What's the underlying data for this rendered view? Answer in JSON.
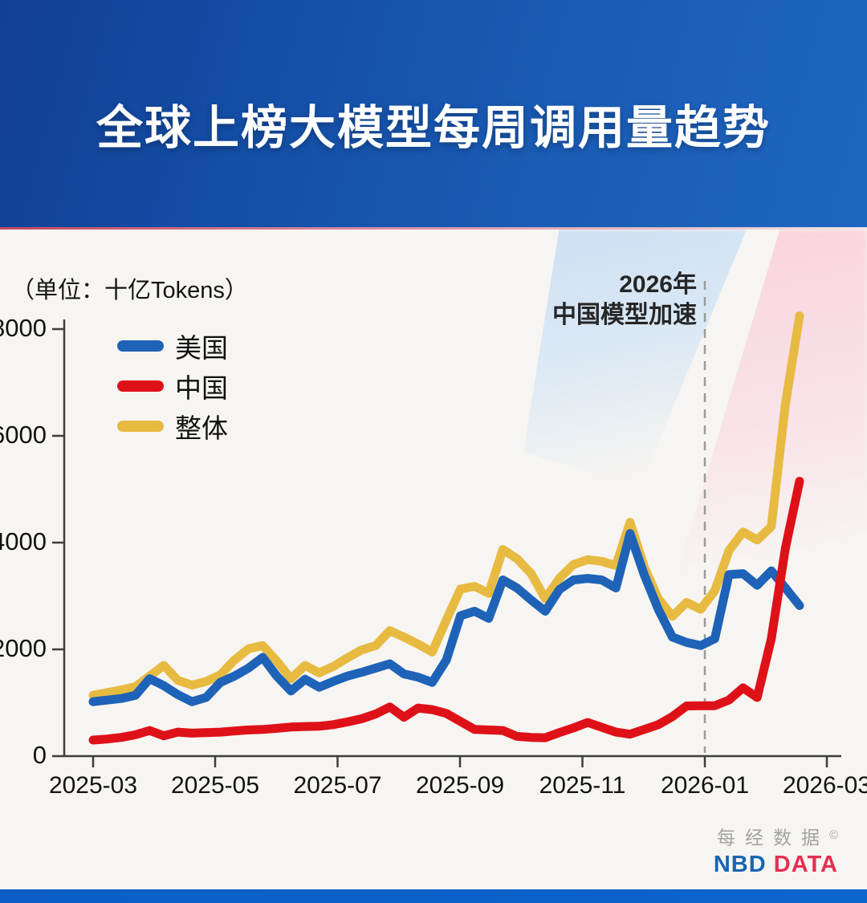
{
  "header": {
    "title": "全球上榜大模型每周调用量趋势"
  },
  "chart": {
    "unit_label": "（单位：十亿Tokens）",
    "annotation": {
      "line1": "2026年",
      "line2": "中国模型加速"
    },
    "legend": [
      {
        "name": "美国",
        "color": "#1e63b8"
      },
      {
        "name": "中国",
        "color": "#df1118"
      },
      {
        "name": "整体",
        "color": "#e7ba41"
      }
    ]
  },
  "chart_data": {
    "type": "line",
    "title": "全球上榜大模型每周调用量趋势",
    "unit": "十亿Tokens",
    "grid": false,
    "legend_position": "top-left",
    "ylim": [
      0,
      8000
    ],
    "y_ticks": [
      0,
      2000,
      4000,
      6000,
      8000
    ],
    "x_tick_labels": [
      "2025-03",
      "2025-05",
      "2025-07",
      "2025-09",
      "2025-11",
      "2026-01",
      "2026-03"
    ],
    "annotation": {
      "text": "2026年 中国模型加速",
      "x": "2026-01"
    },
    "x": [
      "2025-03-01",
      "2025-03-08",
      "2025-03-15",
      "2025-03-22",
      "2025-03-29",
      "2025-04-05",
      "2025-04-12",
      "2025-04-19",
      "2025-04-26",
      "2025-05-03",
      "2025-05-10",
      "2025-05-17",
      "2025-05-24",
      "2025-05-31",
      "2025-06-07",
      "2025-06-14",
      "2025-06-21",
      "2025-06-28",
      "2025-07-05",
      "2025-07-12",
      "2025-07-19",
      "2025-07-26",
      "2025-08-02",
      "2025-08-09",
      "2025-08-16",
      "2025-08-23",
      "2025-08-30",
      "2025-09-06",
      "2025-09-13",
      "2025-09-20",
      "2025-09-27",
      "2025-10-04",
      "2025-10-11",
      "2025-10-18",
      "2025-10-25",
      "2025-11-01",
      "2025-11-08",
      "2025-11-15",
      "2025-11-22",
      "2025-11-29",
      "2025-12-06",
      "2025-12-13",
      "2025-12-20",
      "2025-12-27",
      "2026-01-03",
      "2026-01-10",
      "2026-01-17",
      "2026-01-24",
      "2026-01-31",
      "2026-02-07",
      "2026-02-14"
    ],
    "series": [
      {
        "name": "美国",
        "color": "#1e63b8",
        "values": [
          1020,
          1050,
          1080,
          1140,
          1450,
          1320,
          1150,
          1020,
          1100,
          1380,
          1500,
          1650,
          1850,
          1500,
          1220,
          1440,
          1290,
          1400,
          1500,
          1570,
          1650,
          1730,
          1540,
          1480,
          1380,
          1800,
          2630,
          2715,
          2580,
          3300,
          3150,
          2925,
          2715,
          3120,
          3300,
          3330,
          3300,
          3150,
          4170,
          3400,
          2750,
          2230,
          2130,
          2070,
          2200,
          3400,
          3420,
          3200,
          3470,
          3150,
          2820
        ]
      },
      {
        "name": "中国",
        "color": "#df1118",
        "values": [
          300,
          320,
          350,
          400,
          480,
          380,
          450,
          430,
          440,
          450,
          470,
          490,
          500,
          520,
          545,
          555,
          560,
          590,
          640,
          700,
          790,
          920,
          730,
          900,
          870,
          800,
          650,
          500,
          490,
          480,
          370,
          350,
          345,
          440,
          530,
          630,
          540,
          450,
          410,
          500,
          590,
          740,
          940,
          945,
          945,
          1050,
          1280,
          1100,
          2200,
          3900,
          5150
        ]
      },
      {
        "name": "整体",
        "color": "#e7ba41",
        "values": [
          1140,
          1190,
          1240,
          1300,
          1500,
          1700,
          1420,
          1330,
          1400,
          1520,
          1800,
          2010,
          2070,
          1780,
          1450,
          1700,
          1560,
          1680,
          1840,
          1990,
          2070,
          2350,
          2230,
          2100,
          1950,
          2550,
          3130,
          3180,
          3050,
          3870,
          3700,
          3420,
          2950,
          3330,
          3590,
          3680,
          3650,
          3570,
          4380,
          3550,
          2950,
          2620,
          2880,
          2750,
          3100,
          3850,
          4200,
          4050,
          4300,
          6600,
          8250
        ]
      }
    ]
  },
  "footer": {
    "brand_cn": "每经数据",
    "copyright_mark": "©",
    "brand_en_blue": "NBD",
    "brand_en_red": "DATA"
  }
}
